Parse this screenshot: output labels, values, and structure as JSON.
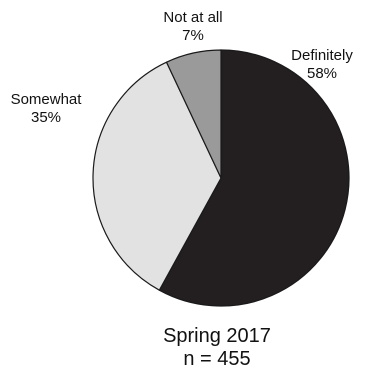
{
  "chart_data": {
    "type": "pie",
    "caption_lines": [
      "Spring 2017",
      "n = 455"
    ],
    "slices": [
      {
        "label": "Definitely",
        "percent_label": "58%",
        "value": 58,
        "color": "#231f20"
      },
      {
        "label": "Somewhat",
        "percent_label": "35%",
        "value": 35,
        "color": "#e2e2e2"
      },
      {
        "label": "Not at all",
        "percent_label": "7%",
        "value": 7,
        "color": "#9a9a9a"
      }
    ],
    "start_angle": "12 o'clock",
    "direction": "clockwise",
    "slice_stroke": "#1a1a1a"
  }
}
